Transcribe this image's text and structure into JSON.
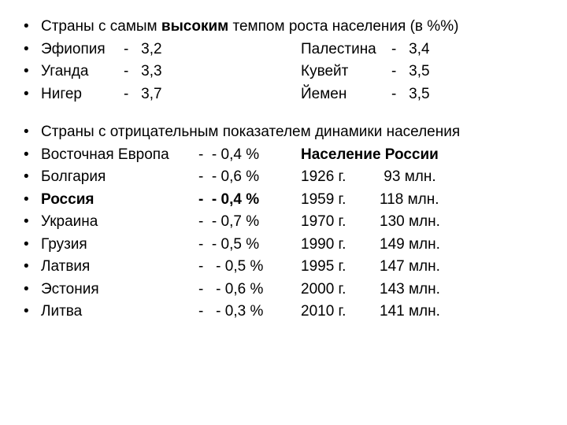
{
  "section1": {
    "title_pre": "Страны с самым ",
    "title_bold": "высоким",
    "title_post": " темпом роста населения (в %%)",
    "left": [
      {
        "name": "Эфиопия",
        "dash": "-",
        "val": "3,2"
      },
      {
        "name": "Уганда",
        "dash": "-",
        "val": "3,3"
      },
      {
        "name": "Нигер",
        "dash": "-",
        "val": "3,7"
      }
    ],
    "right": [
      {
        "name": "Палестина",
        "dash": "-",
        "val": "3,4"
      },
      {
        "name": "Кувейт",
        "dash": "-",
        "val": "3,5"
      },
      {
        "name": "Йемен",
        "dash": "-",
        "val": "3,5"
      }
    ]
  },
  "section2": {
    "title": "Страны с отрицательным показателем динамики населения",
    "left": [
      {
        "name": "Восточная Европа",
        "val": "- 0,4 %",
        "bold": false
      },
      {
        "name": "Болгария",
        "val": "- 0,6 %",
        "bold": false
      },
      {
        "name": "Россия",
        "val": "- 0,4 %",
        "bold": true
      },
      {
        "name": "Украина",
        "val": "- 0,7 %",
        "bold": false
      },
      {
        "name": "Грузия",
        "val": "- 0,5 %",
        "bold": false
      },
      {
        "name": "Латвия",
        "val": " - 0,5 %",
        "bold": false
      },
      {
        "name": "Эстония",
        "val": " - 0,6 %",
        "bold": false
      },
      {
        "name": "Литва",
        "val": " - 0,3 %",
        "bold": false
      }
    ],
    "right_title": "Население России",
    "right": [
      {
        "year": "1926 г.",
        "val": "  93 млн."
      },
      {
        "year": "1959 г.",
        "val": "118 млн."
      },
      {
        "year": "1970 г.",
        "val": "130 млн."
      },
      {
        "year": "1990 г.",
        "val": "149 млн."
      },
      {
        "year": " 1995 г.",
        "val": "147 млн."
      },
      {
        "year": " 2000 г.",
        "val": "143 млн."
      },
      {
        "year": " 2010 г.",
        "val": "141 млн."
      }
    ]
  }
}
